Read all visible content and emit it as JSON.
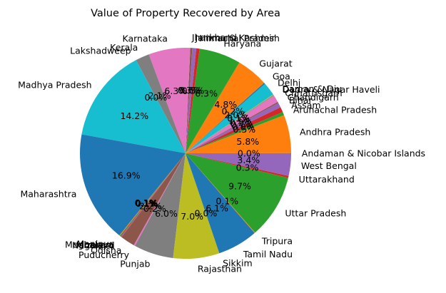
{
  "chart_data": {
    "type": "pie",
    "title": "Value of Property Recovered by Area",
    "start_angle": 0,
    "direction": "counterclockwise",
    "slices": [
      {
        "label": "Andaman & Nicobar Islands",
        "value": 0.02,
        "pct": "0.0%",
        "color": "#1f77b4"
      },
      {
        "label": "Andhra Pradesh",
        "value": 5.8,
        "pct": "5.8%",
        "color": "#ff7f0e"
      },
      {
        "label": "Arunachal Pradesh",
        "value": 0.5,
        "pct": "0.5%",
        "color": "#2ca02c"
      },
      {
        "label": "Assam",
        "value": 0.8,
        "pct": "0.8%",
        "color": "#d62728"
      },
      {
        "label": "Bihar",
        "value": 0.7,
        "pct": "0.7%",
        "color": "#9467bd"
      },
      {
        "label": "Chandigarh",
        "value": 0.2,
        "pct": "0.2%",
        "color": "#8c564b"
      },
      {
        "label": "Chhattisgarh",
        "value": 1.1,
        "pct": "1.1%",
        "color": "#e377c2"
      },
      {
        "label": "Dadra & Nagar Haveli",
        "value": 0.1,
        "pct": "0.1%",
        "color": "#7f7f7f"
      },
      {
        "label": "Daman & Diu",
        "value": 0.1,
        "pct": "0.1%",
        "color": "#bcbd22"
      },
      {
        "label": "Delhi",
        "value": 2.0,
        "pct": "2.0%",
        "color": "#17becf"
      },
      {
        "label": "Goa",
        "value": 0.2,
        "pct": "0.2%",
        "color": "#1f77b4"
      },
      {
        "label": "Gujarat",
        "value": 4.8,
        "pct": "4.8%",
        "color": "#ff7f0e"
      },
      {
        "label": "Haryana",
        "value": 6.3,
        "pct": "6.3%",
        "color": "#2ca02c"
      },
      {
        "label": "Himachal Pradesh",
        "value": 0.5,
        "pct": "0.5%",
        "color": "#d62728"
      },
      {
        "label": "Jammu & Kashmir",
        "value": 0.6,
        "pct": "0.6%",
        "color": "#9467bd"
      },
      {
        "label": "Jharkhand",
        "value": 0.3,
        "pct": "0.3%",
        "color": "#8c564b"
      },
      {
        "label": "Karnataka",
        "value": 6.3,
        "pct": "6.3%",
        "color": "#e377c2"
      },
      {
        "label": "Kerala",
        "value": 2.1,
        "pct": "2.1%",
        "color": "#7f7f7f"
      },
      {
        "label": "Lakshadweep",
        "value": 0.0,
        "pct": "0.0%",
        "color": "#bcbd22"
      },
      {
        "label": "Madhya Pradesh",
        "value": 14.2,
        "pct": "14.2%",
        "color": "#17becf"
      },
      {
        "label": "Maharashtra",
        "value": 16.9,
        "pct": "16.9%",
        "color": "#1f77b4"
      },
      {
        "label": "Manipur",
        "value": 0.1,
        "pct": "0.1%",
        "color": "#ff7f0e"
      },
      {
        "label": "Meghalaya",
        "value": 0.1,
        "pct": "0.1%",
        "color": "#2ca02c"
      },
      {
        "label": "Mizoram",
        "value": 0.1,
        "pct": "0.1%",
        "color": "#d62728"
      },
      {
        "label": "Nagaland",
        "value": 0.1,
        "pct": "0.1%",
        "color": "#9467bd"
      },
      {
        "label": "Odisha",
        "value": 2.2,
        "pct": "2.2%",
        "color": "#8c564b"
      },
      {
        "label": "Puducherry",
        "value": 0.2,
        "pct": "0.2%",
        "color": "#e377c2"
      },
      {
        "label": "Punjab",
        "value": 6.0,
        "pct": "6.0%",
        "color": "#7f7f7f"
      },
      {
        "label": "Rajasthan",
        "value": 7.0,
        "pct": "7.0%",
        "color": "#bcbd22"
      },
      {
        "label": "Sikkim",
        "value": 0.0,
        "pct": "0.0%",
        "color": "#17becf"
      },
      {
        "label": "Tamil Nadu",
        "value": 6.1,
        "pct": "6.1%",
        "color": "#1f77b4"
      },
      {
        "label": "Tripura",
        "value": 0.1,
        "pct": "0.1%",
        "color": "#ff7f0e"
      },
      {
        "label": "Uttar Pradesh",
        "value": 9.7,
        "pct": "9.7%",
        "color": "#2ca02c"
      },
      {
        "label": "Uttarakhand",
        "value": 0.3,
        "pct": "0.3%",
        "color": "#d62728"
      },
      {
        "label": "West Bengal",
        "value": 3.4,
        "pct": "3.4%",
        "color": "#9467bd"
      }
    ]
  }
}
